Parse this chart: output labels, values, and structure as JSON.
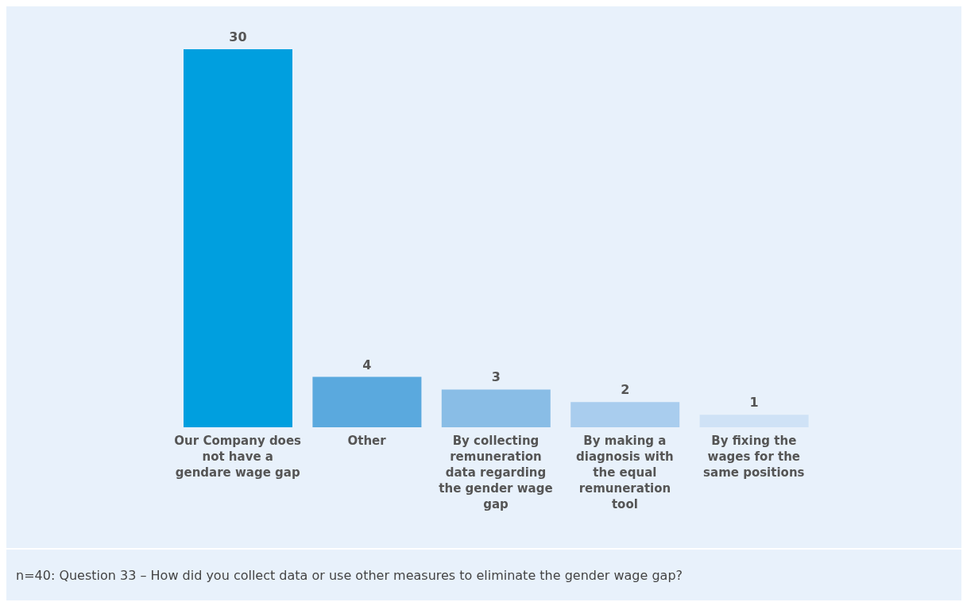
{
  "chart_data": {
    "type": "bar",
    "categories": [
      "Our Company does not have a gendare wage gap",
      "Other",
      "By collecting remuneration data regarding the gender wage gap",
      "By making a diagnosis with the equal remuneration tool",
      "By fixing the wages for the same positions"
    ],
    "values": [
      30,
      4,
      3,
      2,
      1
    ],
    "colors": [
      "#009fdf",
      "#5aa9de",
      "#89bde6",
      "#a9cdee",
      "#cfe2f6"
    ],
    "data_labels": true,
    "grid": false,
    "annotations": [
      "n=40: Question 33 – How did you collect data or use other measures to eliminate the gender wage gap?"
    ]
  }
}
